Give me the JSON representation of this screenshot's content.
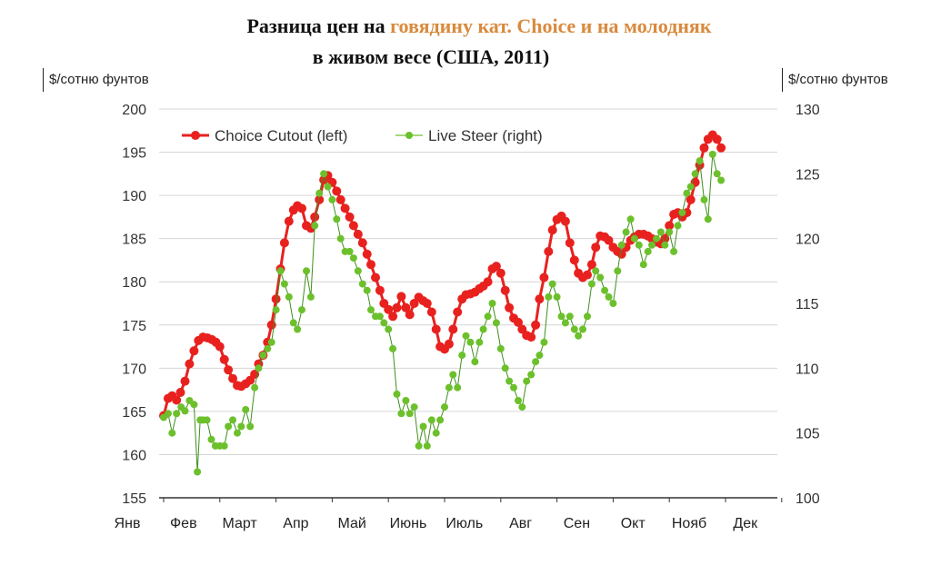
{
  "title_line1_a": "Разница цен на ",
  "title_line1_b": "говядину кат. Choice  и на молодняк",
  "title_line2": "в живом весе (США, 2011)",
  "colors": {
    "choice": "#e8211f",
    "steer": "#6cc02c",
    "steer_dark": "#3e8f1c",
    "accent": "#d98a3d",
    "grid": "#d6d6d6"
  },
  "chart_data": {
    "type": "line",
    "title": "Разница цен на говядину кат. Choice  и на молодняк в живом весе (США, 2011)",
    "ylabel_left": "$/сотню фунтов",
    "ylabel_right": "$/сотню фунтов",
    "ylim_left": [
      155,
      200
    ],
    "ylim_right": [
      100,
      130
    ],
    "yticks_left": [
      155,
      160,
      165,
      170,
      175,
      180,
      185,
      190,
      195,
      200
    ],
    "yticks_right": [
      100,
      105,
      110,
      115,
      120,
      125,
      130
    ],
    "xlim": [
      0,
      11.3
    ],
    "xticks": [
      "Янв",
      "Фев",
      "Март",
      "Апр",
      "Май",
      "Июнь",
      "Июль",
      "Авг",
      "Сен",
      "Окт",
      "Нояб",
      "Дек"
    ],
    "grid": true,
    "legend_position": "top-left",
    "series": [
      {
        "name": "Choice Cutout (left)",
        "axis": "left",
        "points": [
          [
            0.0,
            164.5
          ],
          [
            0.08,
            166.5
          ],
          [
            0.15,
            166.8
          ],
          [
            0.23,
            166.3
          ],
          [
            0.3,
            167.2
          ],
          [
            0.38,
            168.5
          ],
          [
            0.46,
            170.5
          ],
          [
            0.54,
            172.0
          ],
          [
            0.62,
            173.2
          ],
          [
            0.7,
            173.6
          ],
          [
            0.78,
            173.5
          ],
          [
            0.86,
            173.3
          ],
          [
            0.93,
            173.0
          ],
          [
            1.0,
            172.5
          ],
          [
            1.08,
            171.0
          ],
          [
            1.15,
            169.8
          ],
          [
            1.23,
            168.8
          ],
          [
            1.31,
            168.0
          ],
          [
            1.38,
            167.9
          ],
          [
            1.46,
            168.2
          ],
          [
            1.54,
            168.6
          ],
          [
            1.62,
            169.3
          ],
          [
            1.69,
            170.5
          ],
          [
            1.77,
            171.5
          ],
          [
            1.85,
            173.0
          ],
          [
            1.92,
            175.0
          ],
          [
            2.0,
            178.0
          ],
          [
            2.08,
            181.5
          ],
          [
            2.15,
            184.5
          ],
          [
            2.23,
            187.0
          ],
          [
            2.31,
            188.3
          ],
          [
            2.38,
            188.8
          ],
          [
            2.46,
            188.5
          ],
          [
            2.54,
            186.5
          ],
          [
            2.62,
            186.2
          ],
          [
            2.69,
            187.5
          ],
          [
            2.77,
            189.5
          ],
          [
            2.85,
            191.8
          ],
          [
            2.92,
            192.3
          ],
          [
            3.0,
            191.5
          ],
          [
            3.08,
            190.5
          ],
          [
            3.15,
            189.5
          ],
          [
            3.23,
            188.5
          ],
          [
            3.31,
            187.5
          ],
          [
            3.38,
            186.5
          ],
          [
            3.46,
            185.5
          ],
          [
            3.54,
            184.5
          ],
          [
            3.62,
            183.2
          ],
          [
            3.69,
            182.0
          ],
          [
            3.77,
            180.5
          ],
          [
            3.85,
            179.0
          ],
          [
            3.92,
            177.5
          ],
          [
            4.0,
            176.8
          ],
          [
            4.08,
            176.0
          ],
          [
            4.15,
            177.0
          ],
          [
            4.23,
            178.3
          ],
          [
            4.31,
            177.0
          ],
          [
            4.38,
            176.2
          ],
          [
            4.46,
            177.5
          ],
          [
            4.54,
            178.2
          ],
          [
            4.62,
            177.8
          ],
          [
            4.69,
            177.5
          ],
          [
            4.77,
            176.5
          ],
          [
            4.85,
            174.5
          ],
          [
            4.92,
            172.5
          ],
          [
            5.0,
            172.2
          ],
          [
            5.08,
            172.8
          ],
          [
            5.15,
            174.5
          ],
          [
            5.23,
            176.5
          ],
          [
            5.31,
            178.0
          ],
          [
            5.38,
            178.5
          ],
          [
            5.46,
            178.6
          ],
          [
            5.54,
            178.8
          ],
          [
            5.62,
            179.2
          ],
          [
            5.69,
            179.5
          ],
          [
            5.77,
            180.0
          ],
          [
            5.85,
            181.5
          ],
          [
            5.92,
            181.8
          ],
          [
            6.0,
            181.0
          ],
          [
            6.08,
            179.0
          ],
          [
            6.15,
            177.0
          ],
          [
            6.23,
            175.8
          ],
          [
            6.31,
            175.3
          ],
          [
            6.38,
            174.5
          ],
          [
            6.46,
            173.8
          ],
          [
            6.54,
            173.6
          ],
          [
            6.62,
            175.0
          ],
          [
            6.69,
            178.0
          ],
          [
            6.77,
            180.5
          ],
          [
            6.85,
            183.5
          ],
          [
            6.92,
            186.0
          ],
          [
            7.0,
            187.2
          ],
          [
            7.08,
            187.6
          ],
          [
            7.15,
            187.0
          ],
          [
            7.23,
            184.5
          ],
          [
            7.31,
            182.5
          ],
          [
            7.38,
            181.0
          ],
          [
            7.46,
            180.5
          ],
          [
            7.54,
            180.8
          ],
          [
            7.62,
            182.0
          ],
          [
            7.69,
            184.0
          ],
          [
            7.77,
            185.3
          ],
          [
            7.85,
            185.2
          ],
          [
            7.92,
            184.8
          ],
          [
            8.0,
            184.0
          ],
          [
            8.08,
            183.5
          ],
          [
            8.15,
            183.2
          ],
          [
            8.23,
            184.0
          ],
          [
            8.31,
            184.8
          ],
          [
            8.38,
            185.2
          ],
          [
            8.46,
            185.5
          ],
          [
            8.54,
            185.5
          ],
          [
            8.62,
            185.3
          ],
          [
            8.69,
            185.0
          ],
          [
            8.77,
            184.6
          ],
          [
            8.85,
            184.4
          ],
          [
            8.92,
            185.0
          ],
          [
            9.0,
            186.5
          ],
          [
            9.08,
            187.8
          ],
          [
            9.15,
            188.0
          ],
          [
            9.23,
            187.5
          ],
          [
            9.31,
            188.0
          ],
          [
            9.38,
            189.5
          ],
          [
            9.46,
            191.5
          ],
          [
            9.54,
            193.5
          ],
          [
            9.62,
            195.5
          ],
          [
            9.69,
            196.5
          ],
          [
            9.77,
            197.0
          ],
          [
            9.85,
            196.5
          ],
          [
            9.92,
            195.5
          ]
        ]
      },
      {
        "name": "Live Steer (right)",
        "axis": "right",
        "points": [
          [
            0.0,
            106.2
          ],
          [
            0.08,
            106.5
          ],
          [
            0.15,
            105.0
          ],
          [
            0.23,
            106.5
          ],
          [
            0.31,
            107.0
          ],
          [
            0.38,
            106.7
          ],
          [
            0.46,
            107.5
          ],
          [
            0.54,
            107.2
          ],
          [
            0.6,
            102.0
          ],
          [
            0.65,
            106.0
          ],
          [
            0.7,
            106.0
          ],
          [
            0.77,
            106.0
          ],
          [
            0.85,
            104.5
          ],
          [
            0.92,
            104.0
          ],
          [
            1.0,
            104.0
          ],
          [
            1.08,
            104.0
          ],
          [
            1.15,
            105.5
          ],
          [
            1.23,
            106.0
          ],
          [
            1.31,
            105.0
          ],
          [
            1.38,
            105.5
          ],
          [
            1.46,
            106.8
          ],
          [
            1.54,
            105.5
          ],
          [
            1.62,
            108.5
          ],
          [
            1.69,
            110.0
          ],
          [
            1.77,
            111.0
          ],
          [
            1.85,
            111.5
          ],
          [
            1.92,
            112.0
          ],
          [
            2.0,
            114.5
          ],
          [
            2.08,
            117.5
          ],
          [
            2.15,
            116.5
          ],
          [
            2.23,
            115.5
          ],
          [
            2.31,
            113.5
          ],
          [
            2.38,
            113.0
          ],
          [
            2.46,
            114.5
          ],
          [
            2.54,
            117.5
          ],
          [
            2.62,
            115.5
          ],
          [
            2.69,
            121.0
          ],
          [
            2.77,
            123.5
          ],
          [
            2.85,
            125.0
          ],
          [
            2.92,
            124.0
          ],
          [
            3.0,
            123.0
          ],
          [
            3.08,
            121.5
          ],
          [
            3.15,
            120.0
          ],
          [
            3.23,
            119.0
          ],
          [
            3.31,
            119.0
          ],
          [
            3.38,
            118.5
          ],
          [
            3.46,
            117.5
          ],
          [
            3.54,
            116.5
          ],
          [
            3.62,
            116.0
          ],
          [
            3.69,
            114.5
          ],
          [
            3.77,
            114.0
          ],
          [
            3.85,
            114.0
          ],
          [
            3.92,
            113.5
          ],
          [
            4.0,
            113.0
          ],
          [
            4.08,
            111.5
          ],
          [
            4.15,
            108.0
          ],
          [
            4.23,
            106.5
          ],
          [
            4.31,
            107.5
          ],
          [
            4.38,
            106.5
          ],
          [
            4.46,
            107.0
          ],
          [
            4.54,
            104.0
          ],
          [
            4.62,
            105.5
          ],
          [
            4.69,
            104.0
          ],
          [
            4.77,
            106.0
          ],
          [
            4.85,
            105.0
          ],
          [
            4.92,
            106.0
          ],
          [
            5.0,
            107.0
          ],
          [
            5.08,
            108.5
          ],
          [
            5.15,
            109.5
          ],
          [
            5.23,
            108.5
          ],
          [
            5.31,
            111.0
          ],
          [
            5.38,
            112.5
          ],
          [
            5.46,
            112.0
          ],
          [
            5.54,
            110.5
          ],
          [
            5.62,
            112.0
          ],
          [
            5.69,
            113.0
          ],
          [
            5.77,
            114.0
          ],
          [
            5.85,
            115.0
          ],
          [
            5.92,
            113.5
          ],
          [
            6.0,
            111.5
          ],
          [
            6.08,
            110.0
          ],
          [
            6.15,
            109.0
          ],
          [
            6.23,
            108.5
          ],
          [
            6.31,
            107.5
          ],
          [
            6.38,
            107.0
          ],
          [
            6.46,
            109.0
          ],
          [
            6.54,
            109.5
          ],
          [
            6.62,
            110.5
          ],
          [
            6.69,
            111.0
          ],
          [
            6.77,
            112.0
          ],
          [
            6.85,
            115.5
          ],
          [
            6.92,
            116.5
          ],
          [
            7.0,
            115.5
          ],
          [
            7.08,
            114.0
          ],
          [
            7.15,
            113.5
          ],
          [
            7.23,
            114.0
          ],
          [
            7.31,
            113.0
          ],
          [
            7.38,
            112.5
          ],
          [
            7.46,
            113.0
          ],
          [
            7.54,
            114.0
          ],
          [
            7.62,
            116.5
          ],
          [
            7.69,
            117.5
          ],
          [
            7.77,
            117.0
          ],
          [
            7.85,
            116.0
          ],
          [
            7.92,
            115.5
          ],
          [
            8.0,
            115.0
          ],
          [
            8.08,
            117.5
          ],
          [
            8.15,
            119.5
          ],
          [
            8.23,
            120.5
          ],
          [
            8.31,
            121.5
          ],
          [
            8.38,
            120.0
          ],
          [
            8.46,
            119.5
          ],
          [
            8.54,
            118.0
          ],
          [
            8.62,
            119.0
          ],
          [
            8.69,
            119.5
          ],
          [
            8.77,
            120.0
          ],
          [
            8.85,
            120.5
          ],
          [
            8.92,
            119.5
          ],
          [
            9.0,
            120.5
          ],
          [
            9.08,
            119.0
          ],
          [
            9.15,
            121.0
          ],
          [
            9.23,
            122.0
          ],
          [
            9.31,
            123.5
          ],
          [
            9.38,
            124.0
          ],
          [
            9.46,
            125.0
          ],
          [
            9.54,
            126.0
          ],
          [
            9.62,
            123.0
          ],
          [
            9.69,
            121.5
          ],
          [
            9.77,
            126.5
          ],
          [
            9.85,
            125.0
          ],
          [
            9.92,
            124.5
          ]
        ]
      }
    ]
  }
}
